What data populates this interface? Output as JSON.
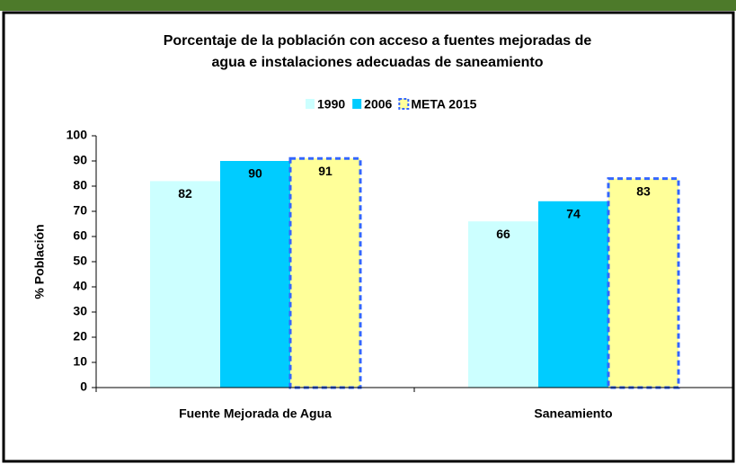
{
  "chart_data": {
    "type": "bar",
    "title": [
      "Porcentaje de la población con acceso a fuentes mejoradas de",
      "agua e instalaciones adecuadas de saneamiento"
    ],
    "y_label": "% Población",
    "categories": [
      "Fuente Mejorada de Agua",
      "Saneamiento"
    ],
    "series": [
      {
        "name": "1990",
        "color": "#ccffff",
        "values": [
          82,
          66
        ]
      },
      {
        "name": "2006",
        "color": "#00ccff",
        "values": [
          90,
          74
        ]
      },
      {
        "name": "META 2015",
        "color": "#ffff99",
        "border": "#3366ff",
        "values": [
          91,
          83
        ]
      }
    ],
    "ylim": [
      0,
      100
    ],
    "yticks": [
      0,
      10,
      20,
      30,
      40,
      50,
      60,
      70,
      80,
      90,
      100
    ],
    "legend": "top"
  }
}
